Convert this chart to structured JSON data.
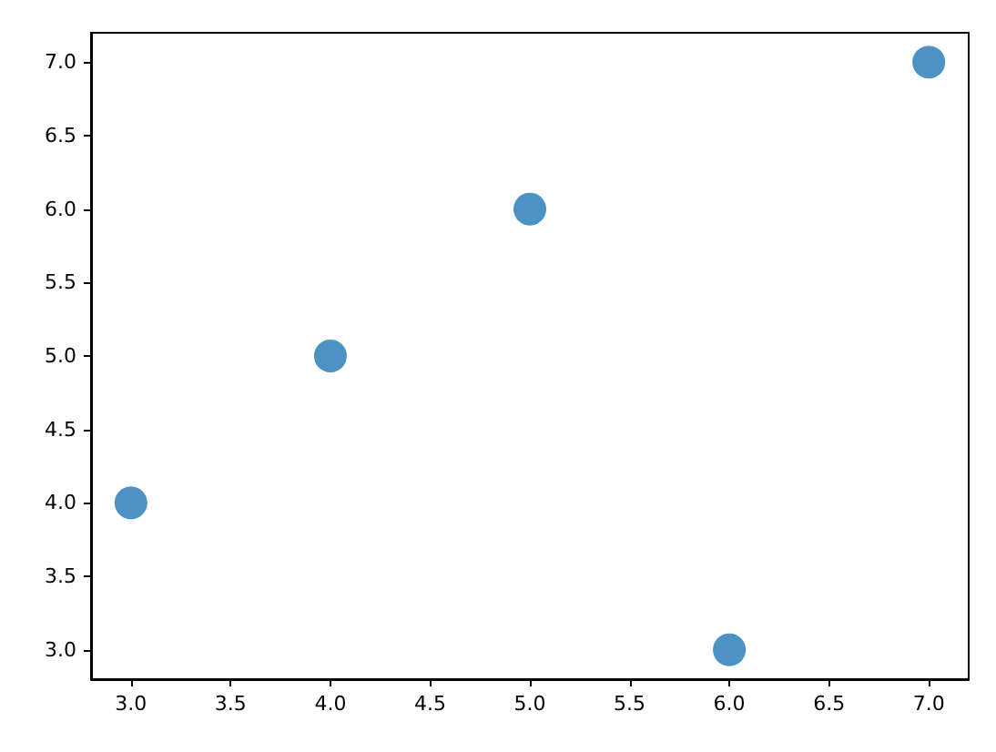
{
  "chart_data": {
    "type": "scatter",
    "x": [
      3,
      4,
      5,
      6,
      7
    ],
    "values": [
      4,
      5,
      6,
      3,
      7
    ],
    "color": "#1f77b4",
    "marker": "circle",
    "grid": false,
    "xlim": [
      2.8,
      7.2
    ],
    "ylim": [
      2.8,
      7.2
    ],
    "xticks": [
      {
        "value": 3,
        "label": "3.0"
      },
      {
        "value": 3.5,
        "label": "3.5"
      },
      {
        "value": 4,
        "label": "4.0"
      },
      {
        "value": 4.5,
        "label": "4.5"
      },
      {
        "value": 5,
        "label": "5.0"
      },
      {
        "value": 5.5,
        "label": "5.5"
      },
      {
        "value": 6,
        "label": "6.0"
      },
      {
        "value": 6.5,
        "label": "6.5"
      },
      {
        "value": 7,
        "label": "7.0"
      }
    ],
    "yticks": [
      {
        "value": 3,
        "label": "3.0"
      },
      {
        "value": 3.5,
        "label": "3.5"
      },
      {
        "value": 4,
        "label": "4.0"
      },
      {
        "value": 4.5,
        "label": "4.5"
      },
      {
        "value": 5,
        "label": "5.0"
      },
      {
        "value": 5.5,
        "label": "5.5"
      },
      {
        "value": 6,
        "label": "6.0"
      },
      {
        "value": 6.5,
        "label": "6.5"
      },
      {
        "value": 7,
        "label": "7.0"
      }
    ]
  }
}
